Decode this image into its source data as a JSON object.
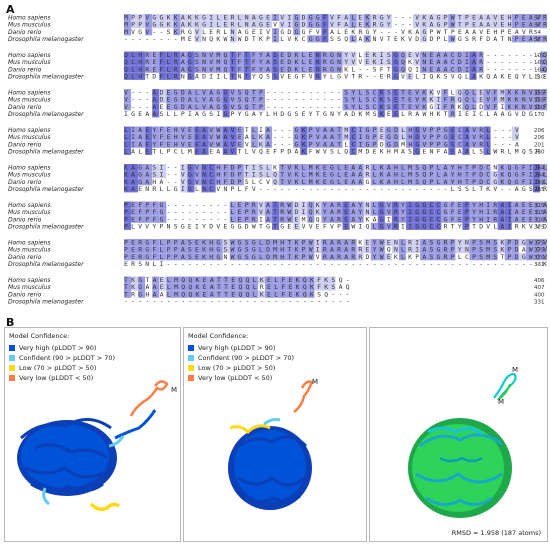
{
  "panels": {
    "a": "A",
    "b": "B"
  },
  "alignment": {
    "species": [
      "Homo sapiens",
      "Mus musculus",
      "Danio rerio",
      "Drosophila melanogaster"
    ],
    "blocks": [
      {
        "seqs": [
          "MPPVGGKKAKKGILERLNAGEIVIGDGGFVFALEKRGY---VKAGPWTPEAAVEHPEAVR",
          "MPPVGGKKAKKGILERLNAGEVVIGDGGFVFALEKRGY---VKAGPWTPEAAVEHPEAVR",
          "MVGV--SKRGVLERLNAGEIVIGDGGFVFALEKRGY---VKAGPWTPEAAVEHPEAVR",
          "--------MEVNQKWNWDTKPILVKCGGFSSQLAKNVTEKVDGDPLWGSRFDATNPEAVR"
        ],
        "nums": [
          "57",
          "57",
          "54",
          "57"
        ]
      },
      {
        "seqs": [
          "QLHREFLRAGSNVMQTFTFYASEDKLENRGNYVLEKISGQEVNEAACDIAR--------Q",
          "QLHREFLRAGSNVMQTFTFYASEDKLENRGNYVVEKISGQKVNEAACDIAR--------Q",
          "QLHREFLRAGSNVMQTFTFYASEDKLENRGNKL--SFTGQQINEAACDIAR--------Q",
          "QLHTDFLRNGADIILTNTYQSSVEGFVNYLGVTR--ERGVELIQKSVQLAKQAKEQYLSE"
        ],
        "nums": [
          "109",
          "109",
          "104",
          "110"
        ]
      },
      {
        "seqs": [
          "V---ADEGDALVAGGVSQTP-----------SYLSCKSETEVKKVFLQQLEVFMKKNVDF",
          "V---ADEGDALVAGGVSQTP-----------SYLSCKSETEVKKIFRQQLEVFMKKNVDF",
          "V---AEEGDALVAGGVSQTP-----------SYLSCKSETEVKGIFRKQLDVFIKKNVDF",
          "IGEAASLLPIAGSIGPYGAYLHDGSEYTGNYADKMSKEELRAWHKTRIEICLAAGVDG"
        ],
        "nums": [
          "155",
          "155",
          "150",
          "170"
        ]
      },
      {
        "seqs": [
          "LIAEYFEHVEEAVWAVETLIA---GKPVAATMCIGPEGDLHGVPPGECAVRL---V",
          "LIAEYFEHVEEAVWAVEALKA---GKPVAATMCIGPEGDLHGVPPGECAVRL---V",
          "LIAEYFEHVEEAVWAVEVLKA---GKPVAATLCIGPDGDMHGVPPGECAVRL---A",
          "LALETLPCLMEAEAAVTLVQEFPDAKFWVSLQCMDEKHMASGENFAEAALSLWRLMQSR"
        ],
        "nums": [
          "206",
          "206",
          "201",
          "230"
        ]
      },
      {
        "seqs": [
          "KAGASI--IGVNCHFDPTISLKTVKLMKEGLEAARLKAHLMSQPLAYHTPDCNKQGFIDL",
          "KAGASI--VGVNCHFDPTISLQTVKLMKEGLEAARLKAHLMSQPLAYHTPDCGKQGFIDL",
          "KAGAHA--VGVNCHFDPSLCVQTVKLMKEGLEAAGLKAHLMSQPLAYHTPDCGKQGFIDL",
          "KAENRLLGIGLNCVNPLFV---------------------------LSSLTKV--AGSDRI"
        ],
        "nums": [
          "264",
          "264",
          "259",
          "265"
        ]
      },
      {
        "seqs": [
          "PEFPFG---------LEPRVATRWDIQKYAREAYNLGVRYIGGCCGFEPYHIRAIAEELA",
          "PEFPFG---------LEPRVATRWDIQKYAREAYNLGVRYIGGCCGFEPYHIRAIAEELA",
          "PEFPFG---------LEPRIATRWEMQQYAREAYKAGIRYIGGCCGFEPYHIRAIAEELA",
          "PLVVYPNSGEIYDVEGGDWTGTGEEVVEFVPEWIQLGVRIIGGCCRTYPTDVLAIRKVVD"
        ],
        "nums": [
          "315",
          "315",
          "310",
          "325"
        ]
      },
      {
        "seqs": [
          "PERGFLPPASEKHGSWGSGLDMHTKPWIRARARKEYWENLRIASGRPYNPSMSKPDGWGV",
          "PERGFLPPASEKHGSWGSGLDMHTKPWIRARARREYWQNLRIASGRPYNPSMSKPDAWGV",
          "PERGFLPPASEKHGNWGSGLDMHTKPWVRARARRDYWEKLKPASGRPLCPSMSTPDGWGV",
          "ERSNLI-----------------------------------------------------KP"
        ],
        "nums": [
          "375",
          "375",
          "370",
          "331"
        ]
      },
      {
        "seqs": [
          "TKGTAELMQQKEATTEQQLKELFEKQKFKSQ-",
          "TKGAAELMQQKEATTEQQLRELFEKQKFKSAQ",
          "TRGHAALMQQKEATTEQQLKELFEKQKSQ---",
          "--------------------------------"
        ],
        "nums": [
          "406",
          "407",
          "400",
          "331"
        ]
      }
    ]
  },
  "structures": {
    "legend_title": "Model Confidence:",
    "legend": [
      {
        "label": "Very high (pLDDT > 90)",
        "color": "#0053d6"
      },
      {
        "label": "Confident (90 > pLDDT > 70)",
        "color": "#65cbf3"
      },
      {
        "label": "Low (70 > pLDDT > 50)",
        "color": "#ffdb13"
      },
      {
        "label": "Very low (pLDDT < 50)",
        "color": "#ff7d45"
      }
    ],
    "m_label": "M",
    "rmsd": "RMSD = 1.958 (187 atoms)"
  }
}
